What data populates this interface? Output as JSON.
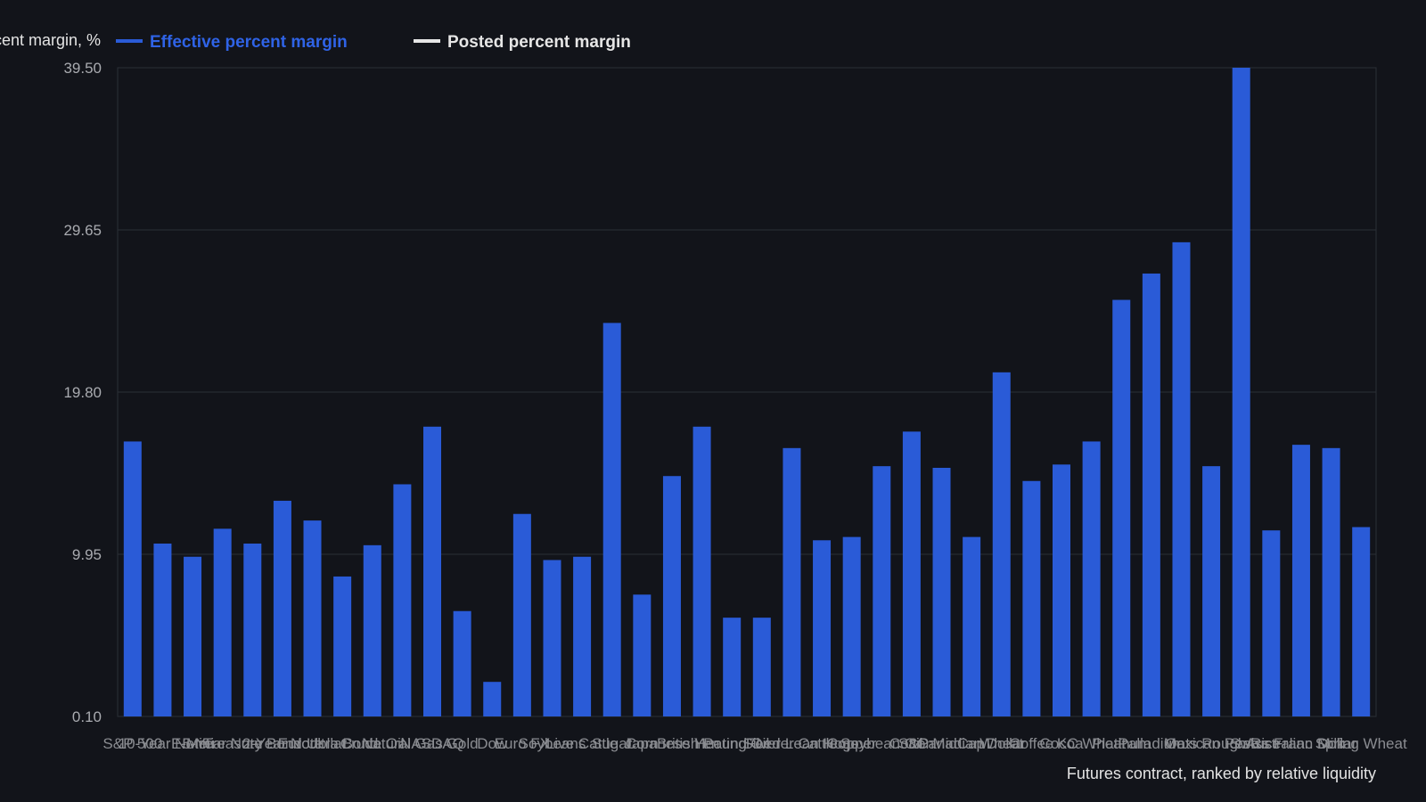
{
  "chart_data": {
    "type": "bar",
    "ylabel": "Effective percent margin, %",
    "xlabel": "Futures contract, ranked by relative liquidity",
    "legend": {
      "placement": "top-left",
      "entries": [
        {
          "name": "Effective percent margin",
          "color": "#2a5bd7"
        },
        {
          "name": "Posted percent margin",
          "color": "#e6e6e6"
        }
      ]
    },
    "y_ticks": [
      "0.10",
      "9.95",
      "19.80",
      "29.65",
      "39.50"
    ],
    "ylim": [
      0.1,
      39.5
    ],
    "grid": true,
    "series": [
      {
        "name": "Effective percent margin",
        "color": "#2a5bd7",
        "values": [
          16.8,
          10.6,
          9.8,
          11.5,
          10.6,
          13.2,
          12.0,
          8.6,
          10.5,
          14.2,
          17.7,
          6.5,
          2.2,
          12.4,
          9.6,
          9.8,
          24.0,
          7.5,
          14.7,
          17.7,
          6.1,
          6.1,
          16.4,
          10.8,
          11.0,
          15.3,
          17.4,
          15.2,
          11.0,
          21.0,
          14.4,
          15.4,
          16.8,
          25.4,
          27.0,
          28.9,
          15.3,
          39.5,
          11.4,
          16.6,
          16.4,
          11.6
        ]
      }
    ],
    "categories": [
      "S&P 500",
      "10-Year Note",
      "E-Mini",
      "5-Year Note",
      "Treasury Bond",
      "2-Year Note",
      "Eurodollar",
      "Ultra Bond",
      "Crude Oil",
      "Natural Gas",
      "NASDAQ",
      "Gold",
      "Dow",
      "Euro FX",
      "Soybeans",
      "Live Cattle",
      "Sugar",
      "Corn",
      "Japanese Yen",
      "British Pound",
      "Heating Oil",
      "Silver",
      "Feeder Cattle",
      "Lean Hogs",
      "Copper",
      "Soybean Oil",
      "Cotton",
      "S&P MidCap",
      "Canadian Dollar",
      "Wheat",
      "Coffee",
      "Cocoa",
      "KC Wheat",
      "Platinum",
      "Palladium",
      "Oats",
      "Mexican Peso",
      "Rough Rice",
      "Swiss Franc",
      "Australian Dollar",
      "Milk",
      "Spring Wheat"
    ]
  }
}
